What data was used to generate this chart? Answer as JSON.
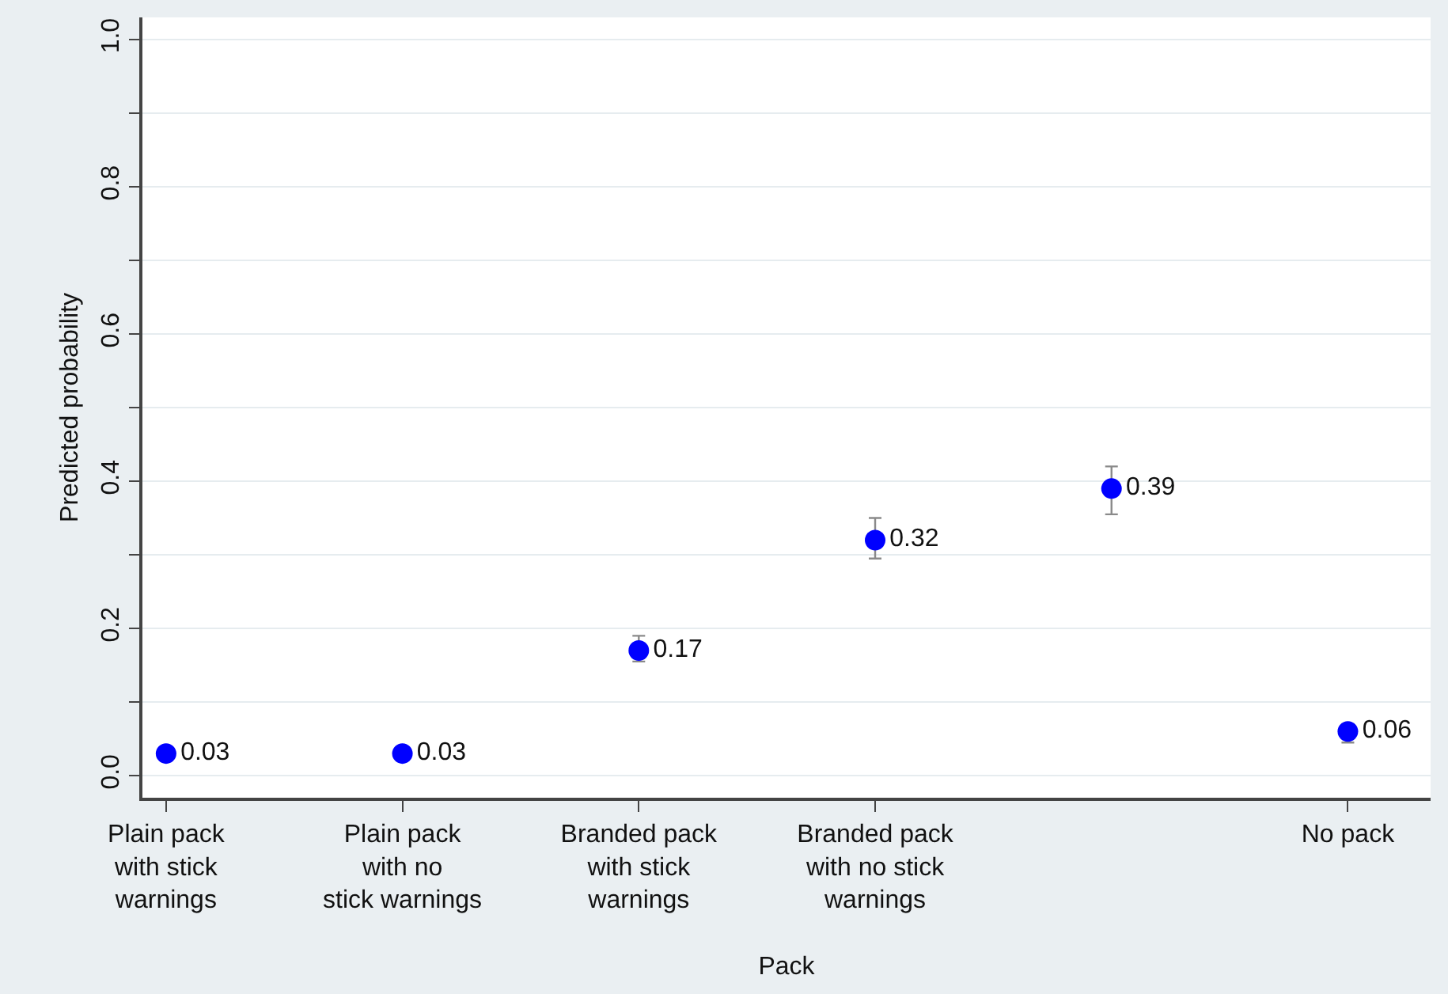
{
  "chart_data": {
    "type": "scatter",
    "categories": [
      "Plain pack\nwith stick\nwarnings",
      "Plain pack\nwith no\nstick warnings",
      "Branded pack\nwith stick\nwarnings",
      "Branded pack\nwith no stick\nwarnings",
      null,
      "No pack"
    ],
    "values": [
      0.03,
      0.03,
      0.17,
      0.32,
      0.39,
      0.06
    ],
    "errors": [
      null,
      null,
      [
        0.155,
        0.19
      ],
      [
        0.295,
        0.35
      ],
      [
        0.355,
        0.42
      ],
      [
        0.045,
        0.07
      ]
    ],
    "color": "#0000ff",
    "marker": "circle",
    "data_labels": true,
    "xlabel": "Pack",
    "ylabel": "Predicted probability",
    "ylim": [
      -0.03,
      1.03
    ],
    "yticks": [
      {
        "value": 0,
        "label": "0.0"
      },
      {
        "value": 0.1,
        "label": null
      },
      0.2,
      {
        "value": 0.3,
        "label": null
      },
      0.4,
      {
        "value": 0.5,
        "label": null
      },
      0.6,
      {
        "value": 0.7,
        "label": null
      },
      0.8,
      {
        "value": 0.9,
        "label": null
      },
      {
        "value": 1,
        "label": "1.0"
      }
    ],
    "grid": "y"
  }
}
